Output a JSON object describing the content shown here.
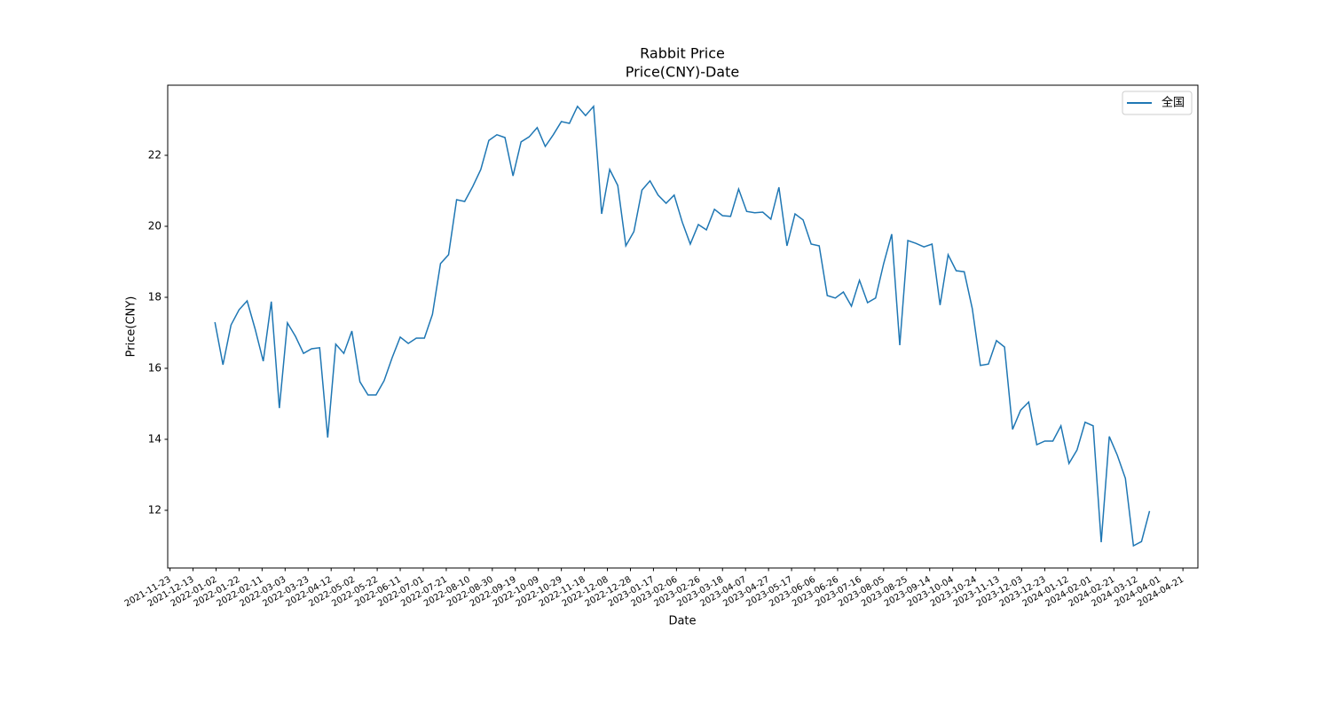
{
  "chart_data": {
    "type": "line",
    "title": "Rabbit Price",
    "subtitle": "Price(CNY)-Date",
    "x_label": "Date",
    "y_label": "Price(CNY)",
    "x": [
      "2022-01-01",
      "2022-01-08",
      "2022-01-15",
      "2022-01-22",
      "2022-01-29",
      "2022-02-05",
      "2022-02-12",
      "2022-02-19",
      "2022-02-26",
      "2022-03-05",
      "2022-03-12",
      "2022-03-19",
      "2022-03-26",
      "2022-04-02",
      "2022-04-09",
      "2022-04-16",
      "2022-04-23",
      "2022-04-30",
      "2022-05-07",
      "2022-05-14",
      "2022-05-21",
      "2022-05-28",
      "2022-06-04",
      "2022-06-11",
      "2022-06-18",
      "2022-06-25",
      "2022-07-02",
      "2022-07-09",
      "2022-07-16",
      "2022-07-23",
      "2022-07-30",
      "2022-08-06",
      "2022-08-13",
      "2022-08-20",
      "2022-08-27",
      "2022-09-03",
      "2022-09-10",
      "2022-09-17",
      "2022-09-24",
      "2022-10-01",
      "2022-10-08",
      "2022-10-15",
      "2022-10-22",
      "2022-10-29",
      "2022-11-05",
      "2022-11-12",
      "2022-11-19",
      "2022-11-26",
      "2022-12-03",
      "2022-12-10",
      "2022-12-17",
      "2022-12-24",
      "2022-12-31",
      "2023-01-07",
      "2023-01-14",
      "2023-01-21",
      "2023-01-28",
      "2023-02-04",
      "2023-02-11",
      "2023-02-18",
      "2023-02-25",
      "2023-03-04",
      "2023-03-11",
      "2023-03-18",
      "2023-03-25",
      "2023-04-01",
      "2023-04-08",
      "2023-04-15",
      "2023-04-22",
      "2023-04-29",
      "2023-05-06",
      "2023-05-13",
      "2023-05-20",
      "2023-05-27",
      "2023-06-03",
      "2023-06-10",
      "2023-06-17",
      "2023-06-24",
      "2023-07-01",
      "2023-07-08",
      "2023-07-15",
      "2023-07-22",
      "2023-07-29",
      "2023-08-05",
      "2023-08-12",
      "2023-08-19",
      "2023-08-26",
      "2023-09-02",
      "2023-09-09",
      "2023-09-16",
      "2023-09-23",
      "2023-09-30",
      "2023-10-07",
      "2023-10-14",
      "2023-10-21",
      "2023-10-28",
      "2023-11-04",
      "2023-11-11",
      "2023-11-18",
      "2023-11-25",
      "2023-12-02",
      "2023-12-09",
      "2023-12-16",
      "2023-12-23",
      "2023-12-30",
      "2024-01-06",
      "2024-01-13",
      "2024-01-20",
      "2024-01-27",
      "2024-02-03",
      "2024-02-10",
      "2024-02-17",
      "2024-02-24",
      "2024-03-02",
      "2024-03-09",
      "2024-03-16",
      "2024-03-23"
    ],
    "series": [
      {
        "name": "全国",
        "color": "#1f77b4",
        "values": [
          17.3,
          16.1,
          17.22,
          17.65,
          17.9,
          17.1,
          16.2,
          17.88,
          14.88,
          17.28,
          16.9,
          16.42,
          16.55,
          16.58,
          14.05,
          16.68,
          16.42,
          17.05,
          15.62,
          15.25,
          15.25,
          15.65,
          16.3,
          16.88,
          16.7,
          16.85,
          16.85,
          17.52,
          18.95,
          19.2,
          20.75,
          20.7,
          21.12,
          21.6,
          22.42,
          22.58,
          22.5,
          21.42,
          22.38,
          22.52,
          22.78,
          22.25,
          22.58,
          22.95,
          22.9,
          23.38,
          23.12,
          23.38,
          20.35,
          21.6,
          21.15,
          19.45,
          19.85,
          21.02,
          21.28,
          20.88,
          20.65,
          20.88,
          20.12,
          19.5,
          20.05,
          19.9,
          20.48,
          20.3,
          20.28,
          21.05,
          20.42,
          20.38,
          20.4,
          20.2,
          21.1,
          19.45,
          20.35,
          20.18,
          19.5,
          19.45,
          18.05,
          17.98,
          18.15,
          17.75,
          18.48,
          17.85,
          17.98,
          18.95,
          19.78,
          16.65,
          19.6,
          19.52,
          19.42,
          19.5,
          17.78,
          19.2,
          18.75,
          18.72,
          17.68,
          16.08,
          16.12,
          16.78,
          16.6,
          14.28,
          14.82,
          15.05,
          13.85,
          13.95,
          13.95,
          14.38,
          13.32,
          13.7,
          14.48,
          14.38,
          11.1,
          14.08,
          13.55,
          12.9,
          11.0,
          11.12,
          11.98
        ]
      }
    ],
    "xlim": [
      "2021-11-21",
      "2024-05-04"
    ],
    "xticks": [
      "2021-11-23",
      "2021-12-13",
      "2022-01-02",
      "2022-01-22",
      "2022-02-11",
      "2022-03-03",
      "2022-03-23",
      "2022-04-12",
      "2022-05-02",
      "2022-05-22",
      "2022-06-11",
      "2022-07-01",
      "2022-07-21",
      "2022-08-10",
      "2022-08-30",
      "2022-09-19",
      "2022-10-09",
      "2022-10-29",
      "2022-11-18",
      "2022-12-08",
      "2022-12-28",
      "2023-01-17",
      "2023-02-06",
      "2023-02-26",
      "2023-03-18",
      "2023-04-07",
      "2023-04-27",
      "2023-05-17",
      "2023-06-06",
      "2023-06-26",
      "2023-07-16",
      "2023-08-05",
      "2023-08-25",
      "2023-09-14",
      "2023-10-04",
      "2023-10-24",
      "2023-11-13",
      "2023-12-03",
      "2023-12-23",
      "2024-01-12",
      "2024-02-01",
      "2024-02-21",
      "2024-03-12",
      "2024-04-01",
      "2024-04-21"
    ],
    "ylim": [
      10.375,
      23.975
    ],
    "yticks": [
      12,
      14,
      16,
      18,
      20,
      22
    ],
    "grid": false,
    "legend": "upper right"
  }
}
